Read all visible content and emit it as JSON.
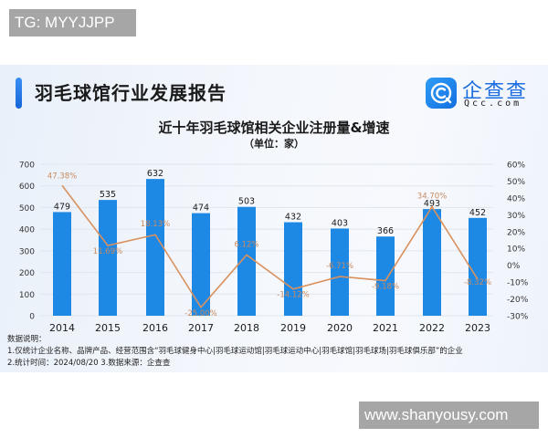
{
  "watermarks": {
    "top": "TG: MYYJJPP",
    "bottom": "www.shanyousy.com"
  },
  "header": {
    "report_title": "羽毛球馆行业发展报告",
    "logo_cn": "企查查",
    "logo_en": "Qcc.com",
    "logo_icon": "qcc-logo-icon"
  },
  "colors": {
    "bar": "#1E88E5",
    "line": "#D9915E",
    "accent": "#1f74e6"
  },
  "chart_data": {
    "type": "bar",
    "title": "近十年羽毛球馆相关企业注册量&增速",
    "subtitle": "（单位：家）",
    "xlabel": "",
    "ylabel": "",
    "categories": [
      "2014",
      "2015",
      "2016",
      "2017",
      "2018",
      "2019",
      "2020",
      "2021",
      "2022",
      "2023"
    ],
    "series": [
      {
        "name": "注册量",
        "type": "bar",
        "axis": "left",
        "values": [
          479,
          535,
          632,
          474,
          503,
          432,
          403,
          366,
          493,
          452
        ],
        "labels": [
          "479",
          "535",
          "632",
          "474",
          "503",
          "432",
          "403",
          "366",
          "493",
          "452"
        ]
      },
      {
        "name": "增速",
        "type": "line",
        "axis": "right",
        "values": [
          47.38,
          11.69,
          18.13,
          -25.0,
          6.12,
          -14.12,
          -6.71,
          -9.18,
          34.7,
          -8.32
        ],
        "labels": [
          "47.38%",
          "11.69%",
          "18.13%",
          "-25.00%",
          "6.12%",
          "-14.12%",
          "-6.71%",
          "-9.18%",
          "34.70%",
          "-8.32%"
        ]
      }
    ],
    "ylim_left": [
      0,
      700
    ],
    "yticks_left": [
      "0",
      "100",
      "200",
      "300",
      "400",
      "500",
      "600",
      "700"
    ],
    "ylim_right": [
      -30,
      60
    ],
    "yticks_right": [
      "-30%",
      "-20%",
      "-10%",
      "0%",
      "10%",
      "20%",
      "30%",
      "40%",
      "50%",
      "60%"
    ],
    "grid": true,
    "legend": "none"
  },
  "notes": {
    "heading": "数据说明：",
    "line1": "1.仅统计企业名称、品牌产品、经营范围含“羽毛球健身中心|羽毛球运动馆|羽毛球运动中心|羽毛球馆|羽毛球场|羽毛球俱乐部”的企业",
    "line2": "2.统计时间：2024/08/20   3.数据来源：企查查"
  }
}
